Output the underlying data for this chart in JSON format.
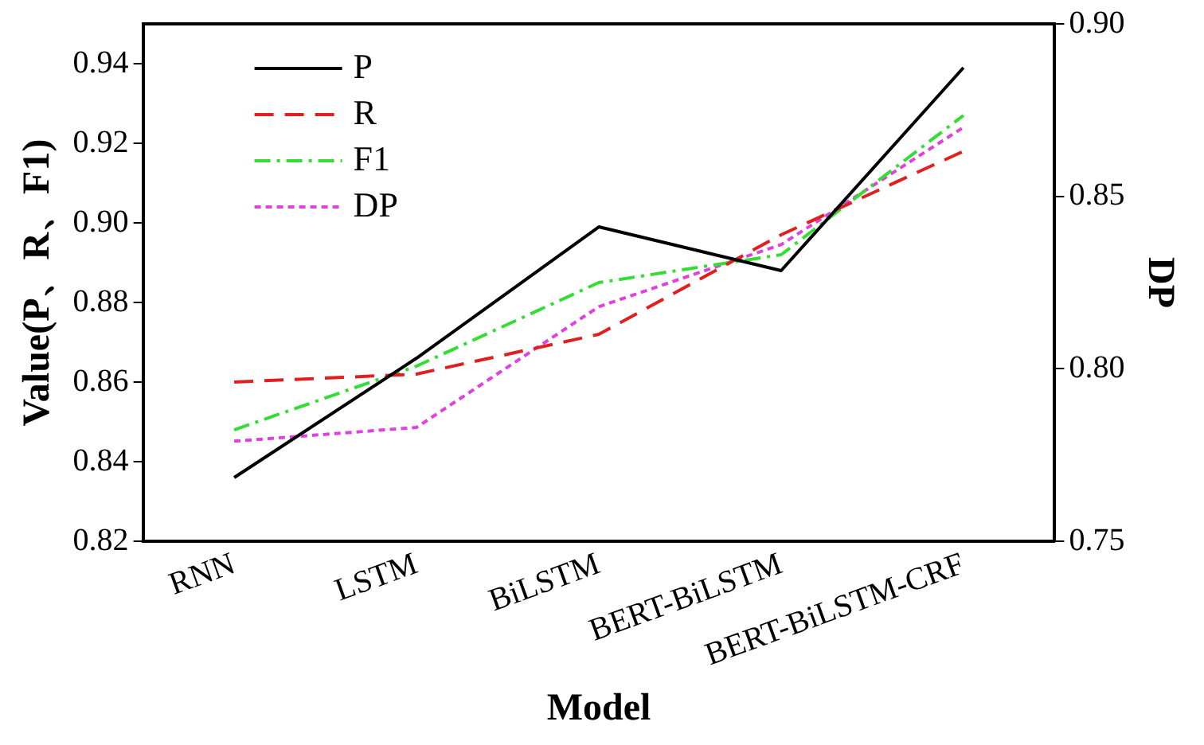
{
  "chart_data": {
    "type": "line",
    "xlabel": "Model",
    "ylabel": "Value(P、R、F1)",
    "y2label": "DP",
    "categories": [
      "RNN",
      "LSTM",
      "BiLSTM",
      "BERT-BiLSTM",
      "BERT-BiLSTM-CRF"
    ],
    "series": [
      {
        "name": "P",
        "color": "#000000",
        "line_style": "solid",
        "values": [
          0.836,
          0.866,
          0.899,
          0.888,
          0.939
        ]
      },
      {
        "name": "R",
        "color": "#e02020",
        "line_style": "dashed",
        "values": [
          0.86,
          0.862,
          0.872,
          0.897,
          0.918
        ]
      },
      {
        "name": "F1",
        "color": "#33dd33",
        "line_style": "dashdot",
        "values": [
          0.848,
          0.864,
          0.885,
          0.892,
          0.927
        ]
      },
      {
        "name": "DP",
        "color": "#e040e0",
        "line_style": "dotted",
        "axis": "y2",
        "values": [
          0.779,
          0.783,
          0.818,
          0.836,
          0.87
        ]
      }
    ],
    "ylim": [
      0.82,
      0.95
    ],
    "yticks": [
      {
        "value": 0.82,
        "label": "0.82"
      },
      {
        "value": 0.84,
        "label": "0.84"
      },
      {
        "value": 0.86,
        "label": "0.86"
      },
      {
        "value": 0.88,
        "label": "0.88"
      },
      {
        "value": 0.9,
        "label": "0.90"
      },
      {
        "value": 0.92,
        "label": "0.92"
      },
      {
        "value": 0.94,
        "label": "0.94"
      }
    ],
    "y2lim": [
      0.75,
      0.9
    ],
    "y2ticks": [
      {
        "value": 0.75,
        "label": "0.75"
      },
      {
        "value": 0.8,
        "label": "0.80"
      },
      {
        "value": 0.85,
        "label": "0.85"
      },
      {
        "value": 0.9,
        "label": "0.90"
      }
    ],
    "grid": false,
    "legend": "top left",
    "marker": "none"
  }
}
